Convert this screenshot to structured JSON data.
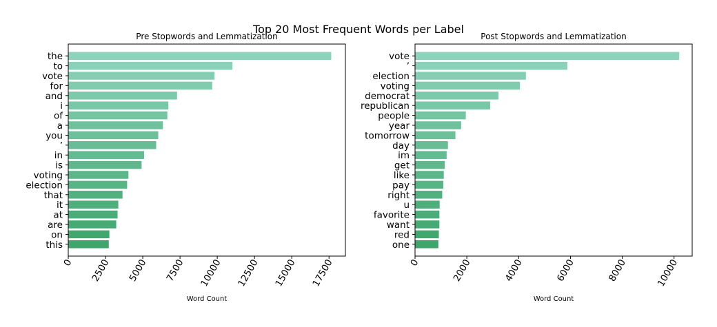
{
  "suptitle": "Top 20 Most Frequent Words per Label",
  "chart_data": [
    {
      "type": "bar",
      "orientation": "horizontal",
      "title": "Pre Stopwords and Lemmatization",
      "xlabel": "Word Count",
      "ylabel": "",
      "xlim": [
        0,
        18600
      ],
      "xticks": [
        0,
        2500,
        5000,
        7500,
        10000,
        12500,
        15000,
        17500
      ],
      "grid": false,
      "categories": [
        "the",
        "to",
        "vote",
        "for",
        "and",
        "i",
        "of",
        "a",
        "you",
        "’",
        "in",
        "is",
        "voting",
        "election",
        "that",
        "it",
        "at",
        "are",
        "on",
        "this"
      ],
      "values": [
        17650,
        11020,
        9820,
        9660,
        7300,
        6720,
        6650,
        6350,
        6040,
        5900,
        5090,
        4920,
        4040,
        3950,
        3640,
        3360,
        3310,
        3220,
        2760,
        2720
      ]
    },
    {
      "type": "bar",
      "orientation": "horizontal",
      "title": "Post Stopwords and Lemmatization",
      "xlabel": "Word Count",
      "ylabel": "",
      "xlim": [
        0,
        10700
      ],
      "xticks": [
        0,
        2000,
        4000,
        6000,
        8000,
        10000
      ],
      "grid": false,
      "categories": [
        "vote",
        "’",
        "election",
        "voting",
        "democrat",
        "republican",
        "people",
        "year",
        "tomorrow",
        "day",
        "im",
        "get",
        "like",
        "pay",
        "right",
        "u",
        "favorite",
        "want",
        "red",
        "one"
      ],
      "values": [
        10200,
        5880,
        4280,
        4050,
        3220,
        2900,
        1960,
        1780,
        1560,
        1270,
        1220,
        1150,
        1110,
        1090,
        1050,
        950,
        940,
        940,
        920,
        900
      ]
    }
  ],
  "colors": {
    "bar_start": "#8dd3bc",
    "bar_end": "#3ea56b",
    "axis": "#000000"
  }
}
